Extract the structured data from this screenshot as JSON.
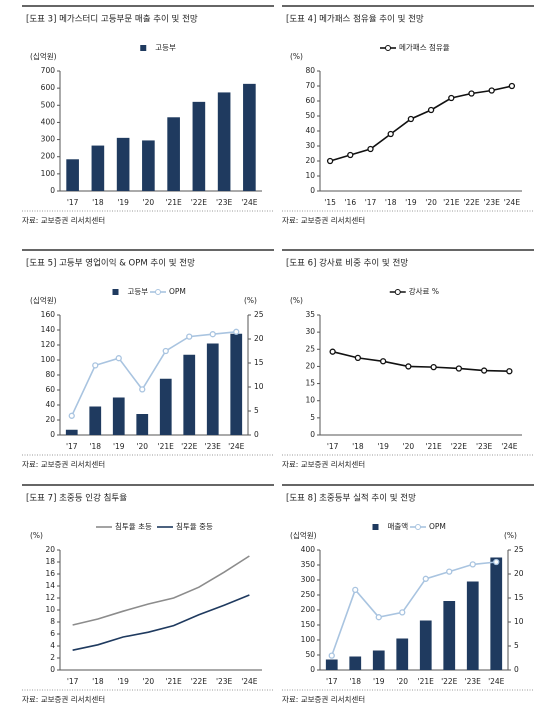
{
  "chart_data": [
    {
      "type": "bar",
      "title": "[도표 3] 메가스터디 고등부문 매출 추이 및 전망",
      "y_label": "(십억원)",
      "source": "자료: 교보증권 리서치센터",
      "categories": [
        "'17",
        "'18",
        "'19",
        "'20",
        "'21E",
        "'22E",
        "'23E",
        "'24E"
      ],
      "series": [
        {
          "name": "고등부",
          "color": "#1f3a5f",
          "values": [
            185,
            265,
            310,
            295,
            430,
            520,
            575,
            625
          ]
        }
      ],
      "ylim": [
        0,
        700
      ],
      "yticks": [
        0,
        100,
        200,
        300,
        400,
        500,
        600,
        700
      ]
    },
    {
      "type": "line",
      "title": "[도표 4] 메가패스 점유율 추이 및 전망",
      "y_label": "(%)",
      "source": "자료: 교보증권 리서치센터",
      "categories": [
        "'15",
        "'16",
        "'17",
        "'18",
        "'19",
        "'20",
        "'21E",
        "'22E",
        "'23E",
        "'24E"
      ],
      "series": [
        {
          "name": "메가패스 점유율",
          "color": "#111111",
          "markers": true,
          "values": [
            20,
            24,
            28,
            38,
            48,
            54,
            62,
            65,
            67,
            70
          ]
        }
      ],
      "ylim": [
        0,
        80
      ],
      "yticks": [
        0,
        10,
        20,
        30,
        40,
        50,
        60,
        70,
        80
      ]
    },
    {
      "type": "combo",
      "title": "[도표 5] 고등부 영업이익 & OPM 추이 및 전망",
      "y_label": "(십억원)",
      "y2_label": "(%)",
      "source": "자료: 교보증권 리서치센터",
      "categories": [
        "'17",
        "'18",
        "'19",
        "'20",
        "'21E",
        "'22E",
        "'23E",
        "'24E"
      ],
      "series": [
        {
          "name": "고등부",
          "type": "bar",
          "color": "#1f3a5f",
          "values": [
            7,
            38,
            50,
            28,
            75,
            107,
            122,
            135
          ]
        },
        {
          "name": "OPM",
          "type": "line",
          "axis": "y2",
          "color": "#a9c4e0",
          "markers": true,
          "values": [
            4,
            14.5,
            16,
            9.5,
            17.5,
            20.5,
            21,
            21.5
          ]
        }
      ],
      "ylim": [
        0,
        160
      ],
      "yticks": [
        0,
        20,
        40,
        60,
        80,
        100,
        120,
        140,
        160
      ],
      "y2lim": [
        0,
        25
      ],
      "y2ticks": [
        0,
        5,
        10,
        15,
        20,
        25
      ]
    },
    {
      "type": "line",
      "title": "[도표 6] 강사료 비중 추이 및 전망",
      "y_label": "(%)",
      "source": "자료: 교보증권 리서치센터",
      "categories": [
        "'17",
        "'18",
        "'19",
        "'20",
        "'21E",
        "'22E",
        "'23E",
        "'24E"
      ],
      "series": [
        {
          "name": "강사료 %",
          "color": "#111111",
          "markers": true,
          "values": [
            24.3,
            22.5,
            21.5,
            20,
            19.8,
            19.4,
            18.8,
            18.6
          ]
        }
      ],
      "ylim": [
        0,
        35
      ],
      "yticks": [
        0,
        5,
        10,
        15,
        20,
        25,
        30,
        35
      ]
    },
    {
      "type": "line",
      "title": "[도표 7] 초중등 인강 침투율",
      "y_label": "(%)",
      "source": "자료: 교보증권 리서치센터",
      "categories": [
        "'17",
        "'18",
        "'19",
        "'20",
        "'21E",
        "'22E",
        "'23E",
        "'24E"
      ],
      "series": [
        {
          "name": "침투율 초등",
          "color": "#8c8c8c",
          "values": [
            7.5,
            8.5,
            9.8,
            11,
            12,
            13.8,
            16.3,
            19
          ]
        },
        {
          "name": "침투율 중등",
          "color": "#1f3a5f",
          "values": [
            3.3,
            4.2,
            5.5,
            6.3,
            7.4,
            9.2,
            10.8,
            12.5
          ]
        }
      ],
      "ylim": [
        0,
        20
      ],
      "yticks": [
        0,
        2,
        4,
        6,
        8,
        10,
        12,
        14,
        16,
        18,
        20
      ]
    },
    {
      "type": "combo",
      "title": "[도표 8] 초중등부 실적 추이 및 전망",
      "y_label": "(십억원)",
      "y2_label": "(%)",
      "source": "자료: 교보증권 리서치센터",
      "categories": [
        "'17",
        "'18",
        "'19",
        "'20",
        "'21E",
        "'22E",
        "'23E",
        "'24E"
      ],
      "series": [
        {
          "name": "매출액",
          "type": "bar",
          "color": "#1f3a5f",
          "values": [
            35,
            45,
            65,
            105,
            165,
            230,
            295,
            375
          ]
        },
        {
          "name": "OPM",
          "type": "line",
          "axis": "y2",
          "color": "#a9c4e0",
          "markers": true,
          "values": [
            3,
            16.7,
            11,
            12,
            19,
            20.5,
            22,
            22.5
          ]
        }
      ],
      "ylim": [
        0,
        400
      ],
      "yticks": [
        0,
        50,
        100,
        150,
        200,
        250,
        300,
        350,
        400
      ],
      "y2lim": [
        0,
        25
      ],
      "y2ticks": [
        0,
        5,
        10,
        15,
        20,
        25
      ]
    }
  ]
}
